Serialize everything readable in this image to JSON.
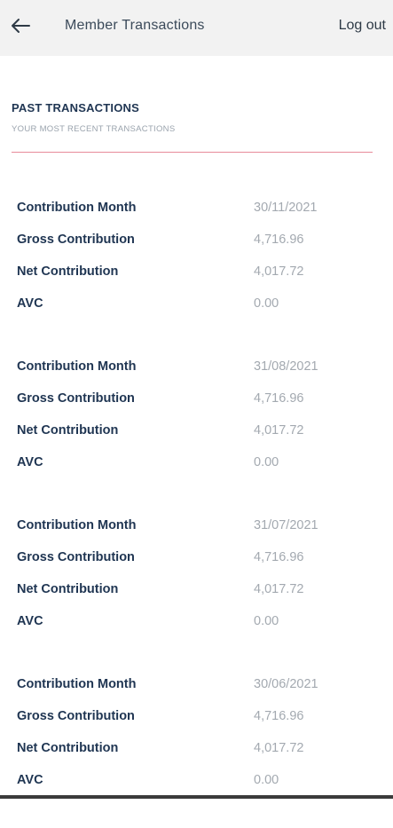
{
  "header": {
    "title": "Member Transactions",
    "logout_label": "Log out",
    "back_icon": "arrow-left-icon"
  },
  "section": {
    "title": "PAST TRANSACTIONS",
    "subtitle": "YOUR MOST RECENT TRANSACTIONS",
    "divider_color": "#e88a9a"
  },
  "transactions": [
    {
      "contribution_month_label": "Contribution Month",
      "contribution_month": "30/11/2021",
      "gross_label": "Gross Contribution",
      "gross": "4,716.96",
      "net_label": "Net Contribution",
      "net": "4,017.72",
      "avc_label": "AVC",
      "avc": "0.00"
    },
    {
      "contribution_month_label": "Contribution Month",
      "contribution_month": "31/08/2021",
      "gross_label": "Gross Contribution",
      "gross": "4,716.96",
      "net_label": "Net Contribution",
      "net": "4,017.72",
      "avc_label": "AVC",
      "avc": "0.00"
    },
    {
      "contribution_month_label": "Contribution Month",
      "contribution_month": "31/07/2021",
      "gross_label": "Gross Contribution",
      "gross": "4,716.96",
      "net_label": "Net Contribution",
      "net": "4,017.72",
      "avc_label": "AVC",
      "avc": "0.00"
    },
    {
      "contribution_month_label": "Contribution Month",
      "contribution_month": "30/06/2021",
      "gross_label": "Gross Contribution",
      "gross": "4,716.96",
      "net_label": "Net Contribution",
      "net": "4,017.72",
      "avc_label": "AVC",
      "avc": "0.00"
    }
  ]
}
